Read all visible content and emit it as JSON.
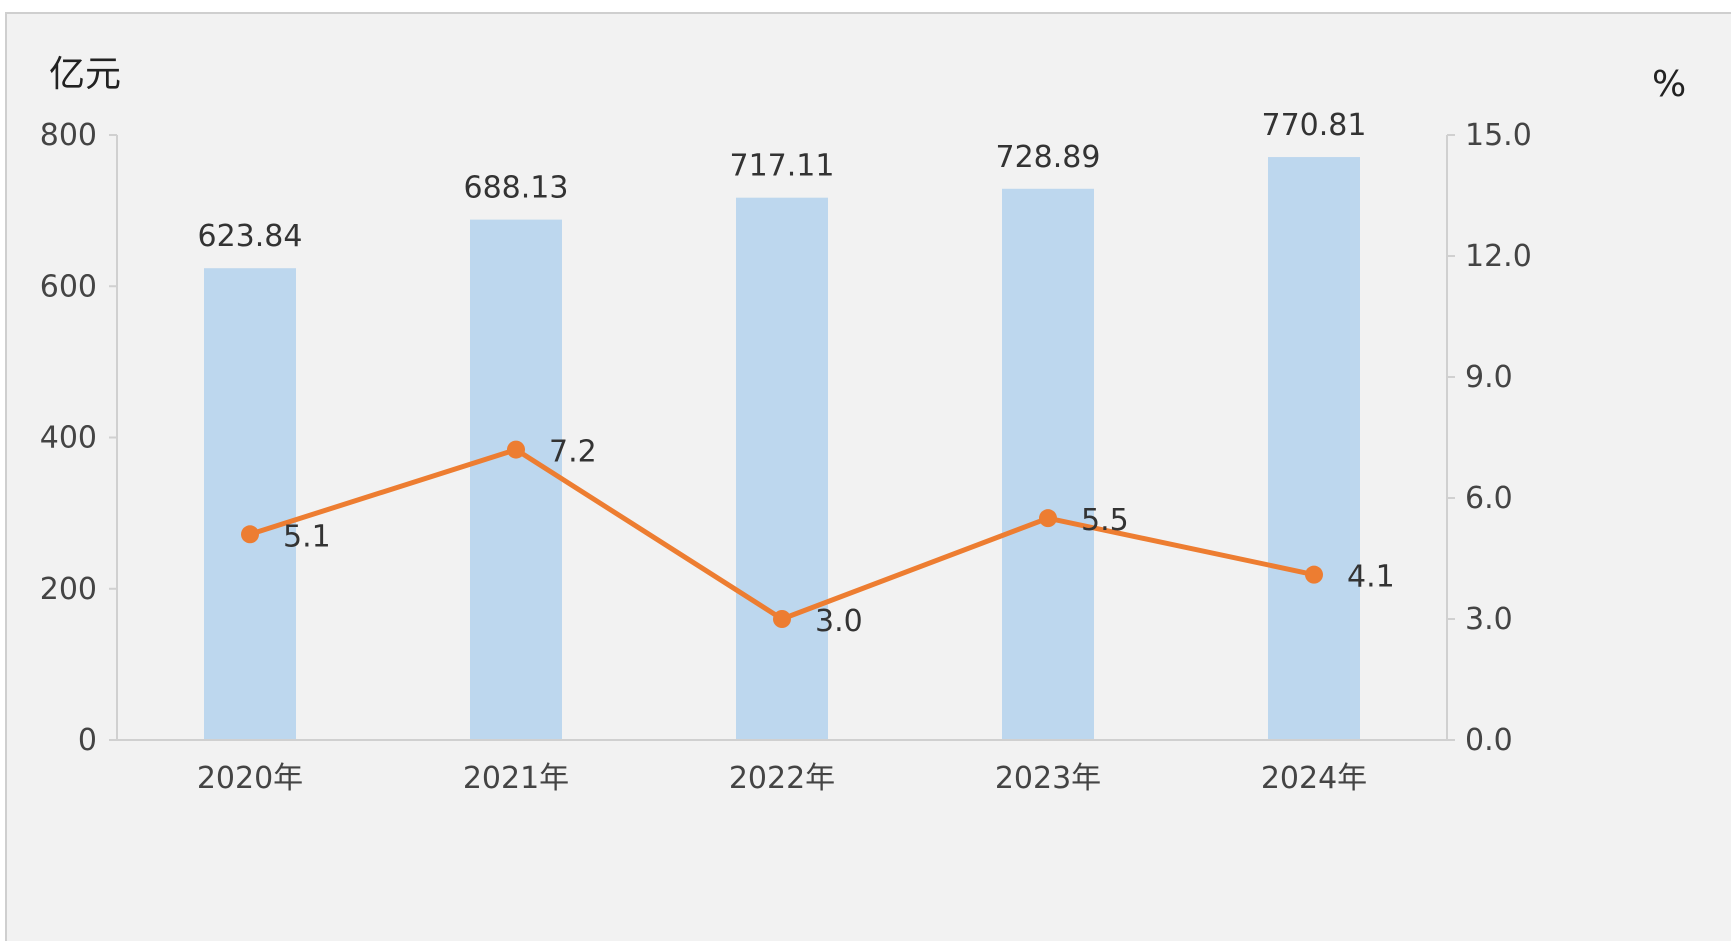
{
  "chart_data": {
    "type": "bar+line",
    "categories": [
      "2020年",
      "2021年",
      "2022年",
      "2023年",
      "2024年"
    ],
    "left_axis": {
      "unit": "亿元",
      "min": 0,
      "max": 800,
      "ticks": [
        "0",
        "200",
        "400",
        "600",
        "800"
      ]
    },
    "right_axis": {
      "unit": "%",
      "min": 0,
      "max": 15,
      "ticks": [
        "0.0",
        "3.0",
        "6.0",
        "9.0",
        "12.0",
        "15.0"
      ]
    },
    "series": [
      {
        "type": "bar",
        "axis": "left",
        "color": "#bdd7ee",
        "values": [
          623.84,
          688.13,
          717.11,
          728.89,
          770.81
        ],
        "labels": [
          "623.84",
          "688.13",
          "717.11",
          "728.89",
          "770.81"
        ]
      },
      {
        "type": "line",
        "axis": "right",
        "color": "#ed7d31",
        "values": [
          5.1,
          7.2,
          3.0,
          5.5,
          4.1
        ],
        "labels": [
          "5.1",
          "7.2",
          "3.0",
          "5.5",
          "4.1"
        ]
      }
    ],
    "grid": false,
    "legend": "none"
  }
}
